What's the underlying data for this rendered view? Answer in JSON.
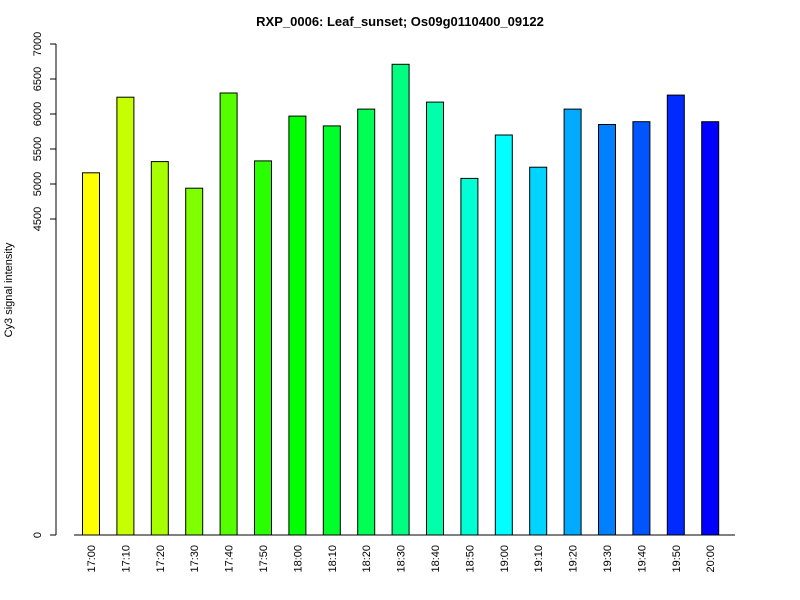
{
  "chart_data": {
    "type": "bar",
    "title": "RXP_0006: Leaf_sunset; Os09g0110400_09122",
    "xlabel": "",
    "ylabel": "Cy3 signal intensity",
    "categories": [
      "17:00",
      "17:10",
      "17:20",
      "17:30",
      "17:40",
      "17:50",
      "18:00",
      "18:10",
      "18:20",
      "18:30",
      "18:40",
      "18:50",
      "19:00",
      "19:10",
      "19:20",
      "19:30",
      "19:40",
      "19:50",
      "20:00"
    ],
    "values": [
      5160,
      6240,
      5320,
      4940,
      6300,
      5330,
      5970,
      5830,
      6070,
      6710,
      6170,
      5080,
      5700,
      5240,
      6070,
      5850,
      5890,
      6270,
      5890
    ],
    "colors": [
      "#FFFF00",
      "#C6FF00",
      "#A8FF00",
      "#80FF00",
      "#55FF00",
      "#2AFF00",
      "#00FF00",
      "#00FF2A",
      "#00FF55",
      "#00FF80",
      "#00FFAA",
      "#00FFD4",
      "#00FFFF",
      "#00D4FF",
      "#00AAFF",
      "#0080FF",
      "#0055FF",
      "#002AFF",
      "#0000FF"
    ],
    "yticks": [
      0,
      4500,
      5000,
      5500,
      6000,
      6500,
      7000
    ],
    "ylim": [
      0,
      7000
    ],
    "axis_break": true
  }
}
